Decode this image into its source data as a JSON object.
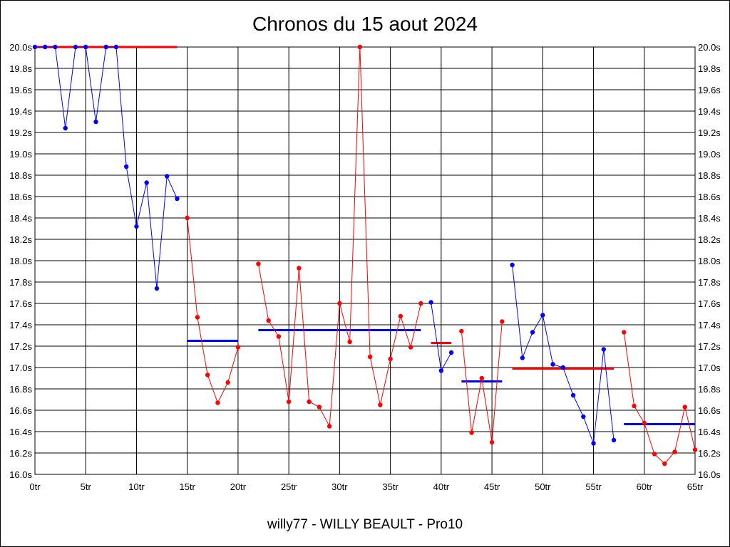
{
  "chart_data": {
    "type": "line",
    "title": "Chronos du 15 aout 2024",
    "subtitle": "willy77 - WILLY BEAULT - Pro10",
    "xlim": [
      0,
      65
    ],
    "ylim": [
      16.0,
      20.0
    ],
    "grid": true,
    "x_ticks": [
      0,
      5,
      10,
      15,
      20,
      25,
      30,
      35,
      40,
      45,
      50,
      55,
      60,
      65
    ],
    "x_tick_labels": [
      "0tr",
      "5tr",
      "10tr",
      "15tr",
      "20tr",
      "25tr",
      "30tr",
      "35tr",
      "40tr",
      "45tr",
      "50tr",
      "55tr",
      "60tr",
      "65tr"
    ],
    "y_ticks": [
      16.0,
      16.2,
      16.4,
      16.6,
      16.8,
      17.0,
      17.2,
      17.4,
      17.6,
      17.8,
      18.0,
      18.2,
      18.4,
      18.6,
      18.8,
      19.0,
      19.2,
      19.4,
      19.6,
      19.8,
      20.0
    ],
    "y_tick_labels": [
      "16.0s",
      "16.2s",
      "16.4s",
      "16.6s",
      "16.8s",
      "17.0s",
      "17.2s",
      "17.4s",
      "17.6s",
      "17.8s",
      "18.0s",
      "18.2s",
      "18.4s",
      "18.6s",
      "18.8s",
      "19.0s",
      "19.2s",
      "19.4s",
      "19.6s",
      "19.8s",
      "20.0s"
    ],
    "series": [
      {
        "color": "#0000ff",
        "points": [
          [
            0,
            20.0
          ],
          [
            1,
            20.0
          ],
          [
            2,
            20.0
          ],
          [
            3,
            19.24
          ],
          [
            4,
            20.0
          ],
          [
            5,
            20.0
          ],
          [
            6,
            19.3
          ],
          [
            7,
            20.0
          ],
          [
            8,
            20.0
          ],
          [
            9,
            18.88
          ],
          [
            10,
            18.32
          ],
          [
            11,
            18.73
          ],
          [
            12,
            17.74
          ],
          [
            13,
            18.79
          ],
          [
            14,
            18.58
          ]
        ]
      },
      {
        "color": "#ff0000",
        "points": [
          [
            15,
            18.4
          ],
          [
            16,
            17.47
          ],
          [
            17,
            16.93
          ],
          [
            18,
            16.67
          ],
          [
            19,
            16.86
          ],
          [
            20,
            17.19
          ]
        ]
      },
      {
        "color": "#ff0000",
        "points": [
          [
            22,
            17.97
          ],
          [
            23,
            17.44
          ],
          [
            24,
            17.29
          ],
          [
            25,
            16.68
          ],
          [
            26,
            17.93
          ],
          [
            27,
            16.68
          ],
          [
            28,
            16.63
          ],
          [
            29,
            16.45
          ],
          [
            30,
            17.6
          ],
          [
            31,
            17.24
          ],
          [
            32,
            20.0
          ],
          [
            33,
            17.1
          ],
          [
            34,
            16.65
          ],
          [
            35,
            17.08
          ],
          [
            36,
            17.48
          ],
          [
            37,
            17.19
          ],
          [
            38,
            17.6
          ]
        ]
      },
      {
        "color": "#0000ff",
        "points": [
          [
            39,
            17.61
          ],
          [
            40,
            16.97
          ],
          [
            41,
            17.14
          ]
        ]
      },
      {
        "color": "#ff0000",
        "points": [
          [
            42,
            17.34
          ],
          [
            43,
            16.39
          ],
          [
            44,
            16.9
          ],
          [
            45,
            16.3
          ],
          [
            46,
            17.43
          ]
        ]
      },
      {
        "color": "#0000ff",
        "points": [
          [
            47,
            17.96
          ],
          [
            48,
            17.09
          ],
          [
            49,
            17.33
          ],
          [
            50,
            17.49
          ],
          [
            51,
            17.03
          ],
          [
            52,
            17.0
          ],
          [
            53,
            16.74
          ],
          [
            54,
            16.54
          ],
          [
            55,
            16.29
          ],
          [
            56,
            17.17
          ],
          [
            57,
            16.32
          ]
        ]
      },
      {
        "color": "#ff0000",
        "points": [
          [
            58,
            17.33
          ],
          [
            59,
            16.64
          ],
          [
            60,
            16.48
          ],
          [
            61,
            16.19
          ],
          [
            62,
            16.1
          ],
          [
            63,
            16.21
          ],
          [
            64,
            16.63
          ],
          [
            65,
            16.23
          ]
        ]
      }
    ],
    "average_lines": [
      {
        "color": "#ff0000",
        "x_start": 0,
        "x_end": 14,
        "y": 20.0
      },
      {
        "color": "#0000ff",
        "x_start": 15,
        "x_end": 20,
        "y": 17.25
      },
      {
        "color": "#0000ff",
        "x_start": 22,
        "x_end": 38,
        "y": 17.35
      },
      {
        "color": "#ff0000",
        "x_start": 39,
        "x_end": 41,
        "y": 17.23
      },
      {
        "color": "#0000ff",
        "x_start": 42,
        "x_end": 46,
        "y": 16.87
      },
      {
        "color": "#ff0000",
        "x_start": 47,
        "x_end": 57,
        "y": 16.99
      },
      {
        "color": "#0000ff",
        "x_start": 58,
        "x_end": 65,
        "y": 16.47
      }
    ]
  }
}
